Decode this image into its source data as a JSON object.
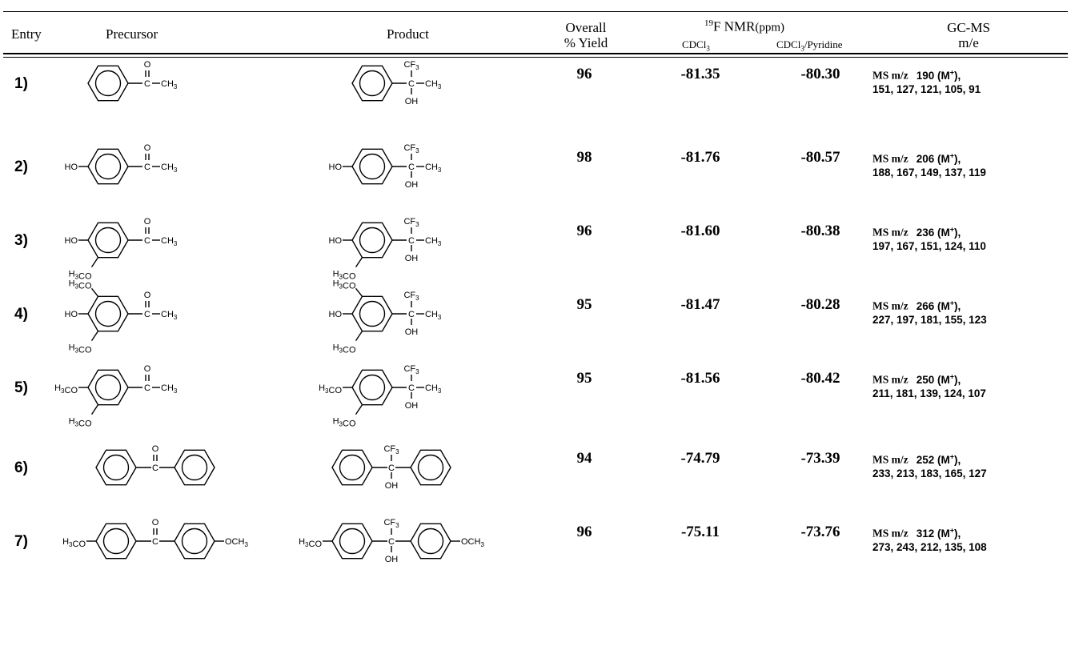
{
  "headers": {
    "entry": "Entry",
    "precursor": "Precursor",
    "product": "Product",
    "yield_line1": "Overall",
    "yield_line2": "% Yield",
    "nmr_title": "19F NMR(ppm)",
    "solvent1": "CDCl3",
    "solvent2": "CDCl3/Pyridine",
    "gcms_line1": "GC-MS",
    "gcms_line2": "m/e"
  },
  "rows": [
    {
      "entry": "1)",
      "yield": "96",
      "nmr1": "-81.35",
      "nmr2": "-80.30",
      "ms_line1": "190 (M+),",
      "ms_line2": "151, 127, 121, 105, 91",
      "precursor_subs": {
        "top": "",
        "left": "",
        "bottom": "",
        "right_group": "C–CH3",
        "top_group": "O"
      },
      "product_subs": {
        "top": "",
        "left": "",
        "bottom": "",
        "carbinol_top": "CF3",
        "carbinol_right": "–CH3",
        "carbinol_bottom": "OH"
      }
    },
    {
      "entry": "2)",
      "yield": "98",
      "nmr1": "-81.76",
      "nmr2": "-80.57",
      "ms_line1": "206 (M+),",
      "ms_line2": "188, 167, 149, 137, 119",
      "precursor_subs": {
        "top": "",
        "left": "HO",
        "bottom": "",
        "right_group": "C–CH3",
        "top_group": "O"
      },
      "product_subs": {
        "top": "",
        "left": "HO",
        "bottom": "",
        "carbinol_top": "CF3",
        "carbinol_right": "–CH3",
        "carbinol_bottom": "OH"
      }
    },
    {
      "entry": "3)",
      "yield": "96",
      "nmr1": "-81.60",
      "nmr2": "-80.38",
      "ms_line1": "236 (M+),",
      "ms_line2": "197, 167, 151, 124, 110",
      "precursor_subs": {
        "top": "",
        "left": "HO",
        "bottom": "H3CO",
        "right_group": "C–CH3",
        "top_group": "O"
      },
      "product_subs": {
        "top": "",
        "left": "HO",
        "bottom": "H3CO",
        "carbinol_top": "CF3",
        "carbinol_right": "–CH3",
        "carbinol_bottom": "OH"
      }
    },
    {
      "entry": "4)",
      "yield": "95",
      "nmr1": "-81.47",
      "nmr2": "-80.28",
      "ms_line1": "266 (M+),",
      "ms_line2": "227, 197, 181, 155, 123",
      "precursor_subs": {
        "top": "H3CO",
        "left": "HO",
        "bottom": "H3CO",
        "right_group": "C–CH3",
        "top_group": "O"
      },
      "product_subs": {
        "top": "H3CO",
        "left": "HO",
        "bottom": "H3CO",
        "carbinol_top": "CF3",
        "carbinol_right": "–CH3",
        "carbinol_bottom": "OH"
      }
    },
    {
      "entry": "5)",
      "yield": "95",
      "nmr1": "-81.56",
      "nmr2": "-80.42",
      "ms_line1": "250 (M+),",
      "ms_line2": "211, 181, 139, 124, 107",
      "precursor_subs": {
        "top": "",
        "left": "H3CO",
        "bottom": "H3CO",
        "right_group": "C–CH3",
        "top_group": "O"
      },
      "product_subs": {
        "top": "",
        "left": "H3CO",
        "bottom": "H3CO",
        "carbinol_top": "CF3",
        "carbinol_right": "–CH3",
        "carbinol_bottom": "OH"
      }
    },
    {
      "entry": "6)",
      "yield": "94",
      "nmr1": "-74.79",
      "nmr2": "-73.39",
      "ms_line1": "252 (M+),",
      "ms_line2": "233, 213, 183, 165, 127",
      "precursor_subs": {
        "left": "",
        "right": "",
        "top_group": "O"
      },
      "product_subs": {
        "left": "",
        "right": "",
        "carbinol_top": "CF3",
        "carbinol_bottom": "OH"
      }
    },
    {
      "entry": "7)",
      "yield": "96",
      "nmr1": "-75.11",
      "nmr2": "-73.76",
      "ms_line1": "312 (M+),",
      "ms_line2": "273, 243, 212, 135, 108",
      "precursor_subs": {
        "left": "H3CO",
        "right": "OCH3",
        "top_group": "O"
      },
      "product_subs": {
        "left": "H3CO",
        "right": "OCH3",
        "carbinol_top": "CF3",
        "carbinol_bottom": "OH"
      }
    }
  ],
  "ms_prefix": "MS m/z"
}
